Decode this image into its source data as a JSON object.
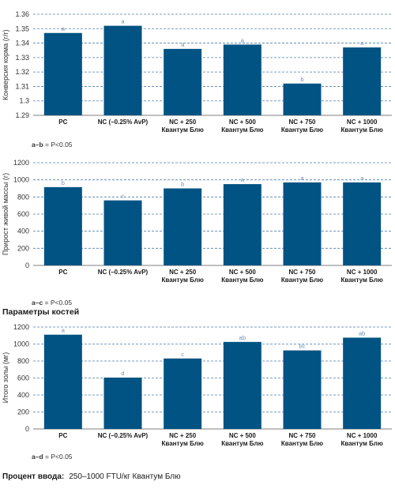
{
  "chart_data": [
    {
      "type": "bar",
      "ylabel": "Конверсия корма (г/г)",
      "ylim": [
        1.29,
        1.36
      ],
      "yticks": [
        "1.36",
        "1.35",
        "1.34",
        "1.33",
        "1.32",
        "1.31",
        "1.3",
        "1.29"
      ],
      "yticks_values": [
        1.36,
        1.35,
        1.34,
        1.33,
        1.32,
        1.31,
        1.3,
        1.29
      ],
      "categories": [
        [
          "PC"
        ],
        [
          "NC (–0.25% AvP)"
        ],
        [
          "NC + 250",
          "Квантум Блю"
        ],
        [
          "NC + 500",
          "Квантум Блю"
        ],
        [
          "NC + 750",
          "Квантум Блю"
        ],
        [
          "NC + 1000",
          "Квантум Блю"
        ]
      ],
      "values": [
        1.347,
        1.352,
        1.336,
        1.339,
        1.312,
        1.337
      ],
      "letters": [
        "a",
        "a",
        "a",
        "a",
        "b",
        "a"
      ],
      "grid": true,
      "note": {
        "bold": "a–b",
        "text": "= P<0.05"
      }
    },
    {
      "type": "bar",
      "ylabel": "Прирост живой массы (г)",
      "ylim": [
        0,
        1200
      ],
      "yticks": [
        "1200",
        "1000",
        "800",
        "600",
        "400",
        "200",
        "0"
      ],
      "yticks_values": [
        1200,
        1000,
        800,
        600,
        400,
        200,
        0
      ],
      "categories": [
        [
          "PC"
        ],
        [
          "NC (–0.25% AvP)"
        ],
        [
          "NC + 250",
          "Квантум Блю"
        ],
        [
          "NC + 500",
          "Квантум Блю"
        ],
        [
          "NC + 750",
          "Квантум Блю"
        ],
        [
          "NC + 1000",
          "Квантум Блю"
        ]
      ],
      "values": [
        915,
        760,
        900,
        950,
        970,
        970
      ],
      "letters": [
        "b",
        "c",
        "b",
        "a",
        "a",
        "a"
      ],
      "grid": true,
      "note": {
        "bold": "a–c",
        "text": "= P<0.05"
      }
    },
    {
      "type": "bar",
      "ylabel": "Итого золы (мг)",
      "ylim": [
        0,
        1200
      ],
      "yticks": [
        "1200",
        "1000",
        "800",
        "600",
        "400",
        "200",
        "0"
      ],
      "yticks_values": [
        1200,
        1000,
        800,
        600,
        400,
        200,
        0
      ],
      "categories": [
        [
          "PC"
        ],
        [
          "NC (–0.25% AvP)"
        ],
        [
          "NC + 250",
          "Квантум Блю"
        ],
        [
          "NC + 500",
          "Квантум Блю"
        ],
        [
          "NC + 750",
          "Квантум Блю"
        ],
        [
          "NC + 1000",
          "Квантум Блю"
        ]
      ],
      "values": [
        1110,
        605,
        830,
        1025,
        925,
        1075
      ],
      "letters": [
        "a",
        "d",
        "c",
        "ab",
        "bc",
        "ab"
      ],
      "grid": true,
      "note": {
        "bold": "a–d",
        "text": "= P<0.05"
      }
    }
  ],
  "section_heading": "Параметры костей",
  "footer": {
    "label": "Процент ввода:",
    "text": "250–1000 FTU/кг Квантум Блю"
  },
  "colors": {
    "bar": "#005383",
    "grid": "#4f7ea8",
    "letter": "#6d8fb3"
  }
}
